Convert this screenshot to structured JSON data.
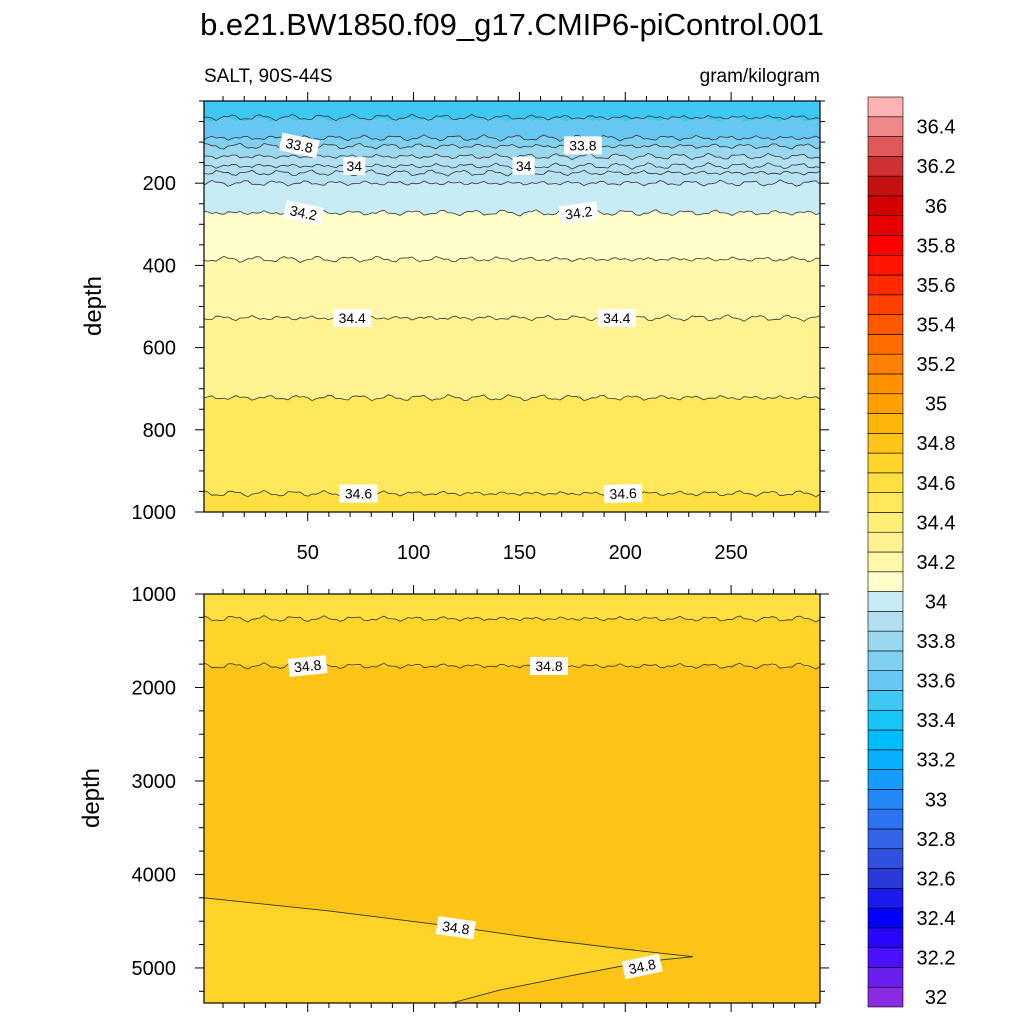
{
  "chart_data": {
    "type": "contour",
    "title": "b.e21.BW1850.f09_g17.CMIP6-piControl.001",
    "left_label": "SALT, 90S-44S",
    "right_label": "gram/kilogram",
    "ylabel": "depth",
    "xlim": [
      1,
      292
    ],
    "x_ticks": [
      50,
      100,
      150,
      200,
      250
    ],
    "colorbar": {
      "levels": [
        32.0,
        32.1,
        32.2,
        32.3,
        32.4,
        32.5,
        32.6,
        32.7,
        32.8,
        32.9,
        33.0,
        33.1,
        33.2,
        33.3,
        33.4,
        33.5,
        33.6,
        33.7,
        33.8,
        33.9,
        34.0,
        34.1,
        34.2,
        34.3,
        34.4,
        34.5,
        34.6,
        34.7,
        34.8,
        34.9,
        35.0,
        35.1,
        35.2,
        35.3,
        35.4,
        35.5,
        35.6,
        35.7,
        35.8,
        35.9,
        36.0,
        36.1,
        36.2,
        36.3,
        36.4,
        36.5
      ],
      "labels": [
        "32",
        "32.2",
        "32.4",
        "32.6",
        "32.8",
        "33",
        "33.2",
        "33.4",
        "33.6",
        "33.8",
        "34",
        "34.2",
        "34.4",
        "34.6",
        "34.8",
        "35",
        "35.2",
        "35.4",
        "35.6",
        "35.8",
        "36",
        "36.2",
        "36.4"
      ],
      "colors": [
        "#8a2be2",
        "#6a1ff0",
        "#4a10ff",
        "#2a06ff",
        "#0000ff",
        "#1a1aee",
        "#2a3ad8",
        "#3050e0",
        "#3464ea",
        "#2e74f2",
        "#2288f8",
        "#169cff",
        "#0aaeff",
        "#00bdff",
        "#18c4f8",
        "#3ec8f4",
        "#66c8f2",
        "#80d0f2",
        "#9ad8f0",
        "#b2e0f2",
        "#c8ecf6",
        "#ffffcc",
        "#fff8a8",
        "#fff290",
        "#ffee78",
        "#ffe85c",
        "#ffe040",
        "#ffd428",
        "#ffc418",
        "#ffb40a",
        "#ffa000",
        "#ff9000",
        "#ff8000",
        "#ff6c00",
        "#ff5800",
        "#ff4000",
        "#ff2a00",
        "#ff1500",
        "#ff0000",
        "#e80000",
        "#d40000",
        "#c41010",
        "#d03030",
        "#e05858",
        "#f08888",
        "#ffb2b2"
      ]
    },
    "panels": [
      {
        "name": "upper",
        "ylim": [
          0,
          1000
        ],
        "y_reversed": true,
        "y_ticks": [
          200,
          400,
          600,
          800,
          1000
        ],
        "y_tick_labels": [
          "200",
          "400",
          "600",
          "800",
          "1000"
        ],
        "bottom_tick_labels": [
          "50",
          "100",
          "150",
          "200",
          "250"
        ],
        "background": "#ffe85c",
        "bands": [
          {
            "level": 33.5,
            "top": 0,
            "bottom": 45,
            "color": "#3ec8f4"
          },
          {
            "level": 33.6,
            "top": 45,
            "bottom": 90,
            "color": "#66c8f2"
          },
          {
            "level": 33.7,
            "top": 90,
            "bottom": 110,
            "color": "#80d0f2"
          },
          {
            "level": 33.8,
            "top": 110,
            "bottom": 135,
            "color": "#9ad8f0"
          },
          {
            "level": 33.9,
            "top": 135,
            "bottom": 175,
            "color": "#b2e0f2"
          },
          {
            "level": 34.0,
            "top": 175,
            "bottom": 200,
            "color": "#b8e2f2"
          },
          {
            "level": 34.1,
            "top": 200,
            "bottom": 272,
            "color": "#c8ecf6"
          },
          {
            "level": 34.2,
            "top": 272,
            "bottom": 385,
            "color": "#ffffcc"
          },
          {
            "level": 34.3,
            "top": 385,
            "bottom": 528,
            "color": "#fff8a8"
          },
          {
            "level": 34.4,
            "top": 528,
            "bottom": 722,
            "color": "#fff290"
          },
          {
            "level": 34.5,
            "top": 722,
            "bottom": 955,
            "color": "#ffe85c"
          },
          {
            "level": 34.6,
            "top": 955,
            "bottom": 1000,
            "color": "#ffe040"
          }
        ],
        "contour_lines": [
          40,
          90,
          110,
          135,
          158,
          175,
          200,
          272,
          385,
          528,
          722,
          955
        ],
        "contour_labels": [
          {
            "text": "33.8",
            "x": 46,
            "y": 108,
            "angle": 12
          },
          {
            "text": "33.8",
            "x": 180,
            "y": 108,
            "angle": 0
          },
          {
            "text": "34",
            "x": 72,
            "y": 158,
            "angle": 0
          },
          {
            "text": "34",
            "x": 152,
            "y": 158,
            "angle": 0
          },
          {
            "text": "34.2",
            "x": 48,
            "y": 272,
            "angle": 12
          },
          {
            "text": "34.2",
            "x": 178,
            "y": 272,
            "angle": -8
          },
          {
            "text": "34.4",
            "x": 71,
            "y": 528,
            "angle": 0
          },
          {
            "text": "34.4",
            "x": 196,
            "y": 528,
            "angle": 0
          },
          {
            "text": "34.6",
            "x": 74,
            "y": 955,
            "angle": 0
          },
          {
            "text": "34.6",
            "x": 199,
            "y": 955,
            "angle": -2
          }
        ]
      },
      {
        "name": "lower",
        "ylim": [
          1000,
          5375
        ],
        "y_reversed": true,
        "y_ticks": [
          1000,
          2000,
          3000,
          4000,
          5000
        ],
        "y_tick_labels": [
          "1000",
          "2000",
          "3000",
          "4000",
          "5000"
        ],
        "background": "#ffc418",
        "bands": [
          {
            "level": 34.7,
            "top": 1000,
            "bottom": 1265,
            "color": "#ffe040"
          },
          {
            "level": 34.75,
            "top": 1265,
            "bottom": 1770,
            "color": "#ffd428"
          }
        ],
        "contour_lines": [
          1265,
          1770
        ],
        "deep_region": {
          "level": 34.8,
          "upper_edge": [
            [
              1,
              4250
            ],
            [
              60,
              4390
            ],
            [
              120,
              4560
            ],
            [
              160,
              4690
            ],
            [
              200,
              4800
            ],
            [
              220,
              4850
            ],
            [
              232,
              4880
            ]
          ],
          "lower_edge": [
            [
              232,
              4880
            ],
            [
              210,
              4930
            ],
            [
              175,
              5080
            ],
            [
              140,
              5240
            ],
            [
              118,
              5375
            ]
          ],
          "color": "#ffd428"
        },
        "contour_labels": [
          {
            "text": "34.8",
            "x": 50,
            "y": 1770,
            "angle": -6
          },
          {
            "text": "34.8",
            "x": 164,
            "y": 1770,
            "angle": 0
          },
          {
            "text": "34.8",
            "x": 120,
            "y": 4570,
            "angle": 8
          },
          {
            "text": "34.8",
            "x": 208,
            "y": 4985,
            "angle": -12
          }
        ]
      }
    ]
  }
}
